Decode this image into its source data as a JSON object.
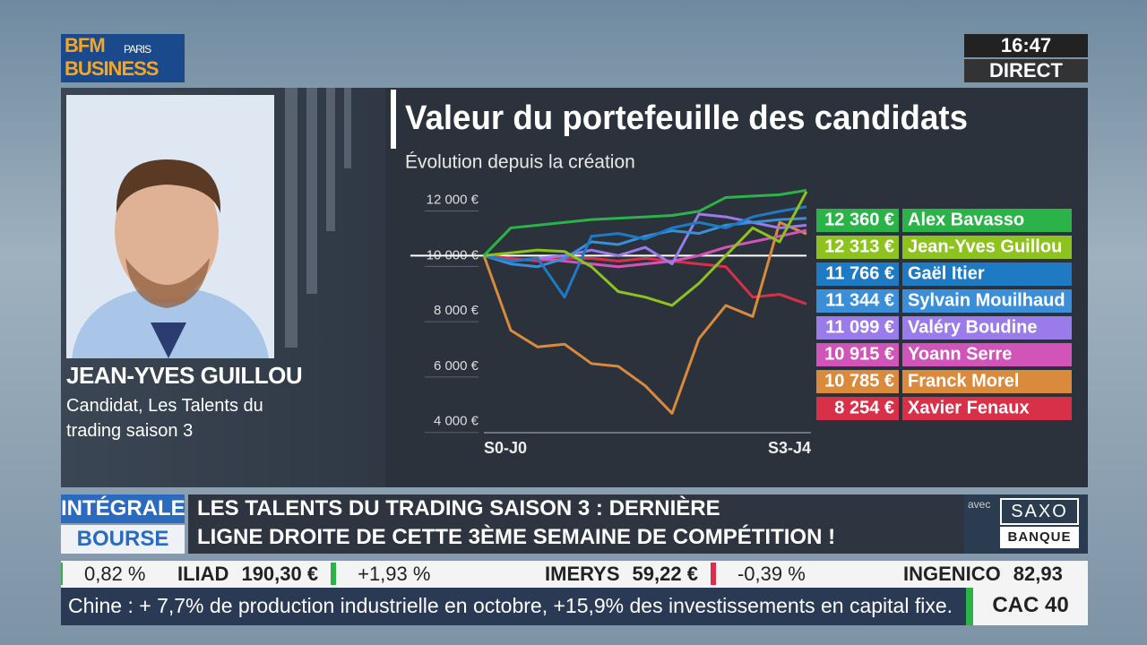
{
  "channel": {
    "logo_top": "BFM",
    "logo_city": "PARIS",
    "logo_bottom": "BUSINESS",
    "time": "16:47",
    "live": "DIRECT"
  },
  "guest": {
    "name": "JEAN-YVES GUILLOU",
    "role_line1": "Candidat, Les Talents du",
    "role_line2": "trading saison 3"
  },
  "chart_data": {
    "type": "line",
    "title": "Valeur du portefeuille des candidats",
    "subtitle": "Évolution depuis la création",
    "categories": [
      "S0-J0",
      null,
      null,
      null,
      null,
      null,
      null,
      null,
      null,
      null,
      null,
      null,
      "S3-J4"
    ],
    "ylim": [
      3700,
      12600
    ],
    "yticks": [
      {
        "value": 4000,
        "label": "4 000 €"
      },
      {
        "value": 6000,
        "label": "6 000 €"
      },
      {
        "value": 8000,
        "label": "8 000 €"
      },
      {
        "value": 10000,
        "label": "10 000 €"
      },
      {
        "value": 12000,
        "label": "12 000 €"
      }
    ],
    "reference_line": 10000,
    "series": [
      {
        "name": "Alex Bavasso",
        "legend_value": "12 360 €",
        "color": "#2bb34a",
        "values": [
          10000,
          11000,
          11100,
          11200,
          11300,
          11350,
          11400,
          11450,
          11600,
          12100,
          12150,
          12200,
          12360
        ]
      },
      {
        "name": "Jean-Yves Guillou",
        "legend_value": "12 313 €",
        "color": "#8dc21f",
        "values": [
          10000,
          10100,
          10200,
          10150,
          9600,
          8700,
          8500,
          8200,
          9000,
          10000,
          11000,
          10500,
          12313
        ]
      },
      {
        "name": "Gaël Itier",
        "legend_value": "11 766 €",
        "color": "#1f7ac4",
        "values": [
          10000,
          9800,
          9900,
          8500,
          10700,
          10800,
          10600,
          11000,
          11200,
          11000,
          11400,
          11600,
          11766
        ]
      },
      {
        "name": "Sylvain Mouilhaud",
        "legend_value": "11 344 €",
        "color": "#3b8fd8",
        "values": [
          10000,
          9700,
          9600,
          9900,
          10500,
          10400,
          10700,
          10900,
          10800,
          11100,
          11200,
          11300,
          11344
        ]
      },
      {
        "name": "Valéry Boudine",
        "legend_value": "11 099 €",
        "color": "#9a7bea",
        "values": [
          10000,
          9800,
          9900,
          10000,
          10200,
          10000,
          10300,
          9700,
          11500,
          11400,
          11200,
          11000,
          11099
        ]
      },
      {
        "name": "Yoann Serre",
        "legend_value": "10 915 €",
        "color": "#d154b8",
        "values": [
          10000,
          9800,
          9900,
          9800,
          9700,
          9600,
          9700,
          9800,
          10000,
          10300,
          10500,
          10700,
          10915
        ]
      },
      {
        "name": "Franck Morel",
        "legend_value": "10 785 €",
        "color": "#d98a3c",
        "values": [
          10000,
          7300,
          6700,
          6800,
          6100,
          6000,
          5300,
          4300,
          7000,
          8200,
          7800,
          11200,
          10785
        ]
      },
      {
        "name": "Xavier Fenaux",
        "legend_value": "8 254 €",
        "color": "#d9304a",
        "values": [
          10000,
          9900,
          9800,
          9900,
          9900,
          9800,
          9900,
          9800,
          9700,
          9600,
          8500,
          8600,
          8254
        ]
      }
    ]
  },
  "banner": {
    "tag_top": "INTÉGRALE",
    "tag_bottom": "BOURSE",
    "headline_line1": "LES TALENTS DU TRADING SAISON 3 : DERNIÈRE",
    "headline_line2": "LIGNE DROITE DE CETTE 3ÈME SEMAINE DE COMPÉTITION !",
    "sponsor_with": "avec",
    "sponsor_top": "SAXO",
    "sponsor_bottom": "BANQUE"
  },
  "ticker": [
    {
      "name": "",
      "price": "",
      "change": "0,82 %"
    },
    {
      "name": "ILIAD",
      "price": "190,30 €",
      "change": "+1,93 %"
    },
    {
      "name": "IMERYS",
      "price": "59,22 €",
      "change": "-0,39 %"
    },
    {
      "name": "INGENICO",
      "price": "82,93",
      "change": ""
    }
  ],
  "news": "Chine : + 7,7% de production industrielle en octobre, +15,9% des investissements en capital fixe.",
  "index_name": "CAC 40"
}
